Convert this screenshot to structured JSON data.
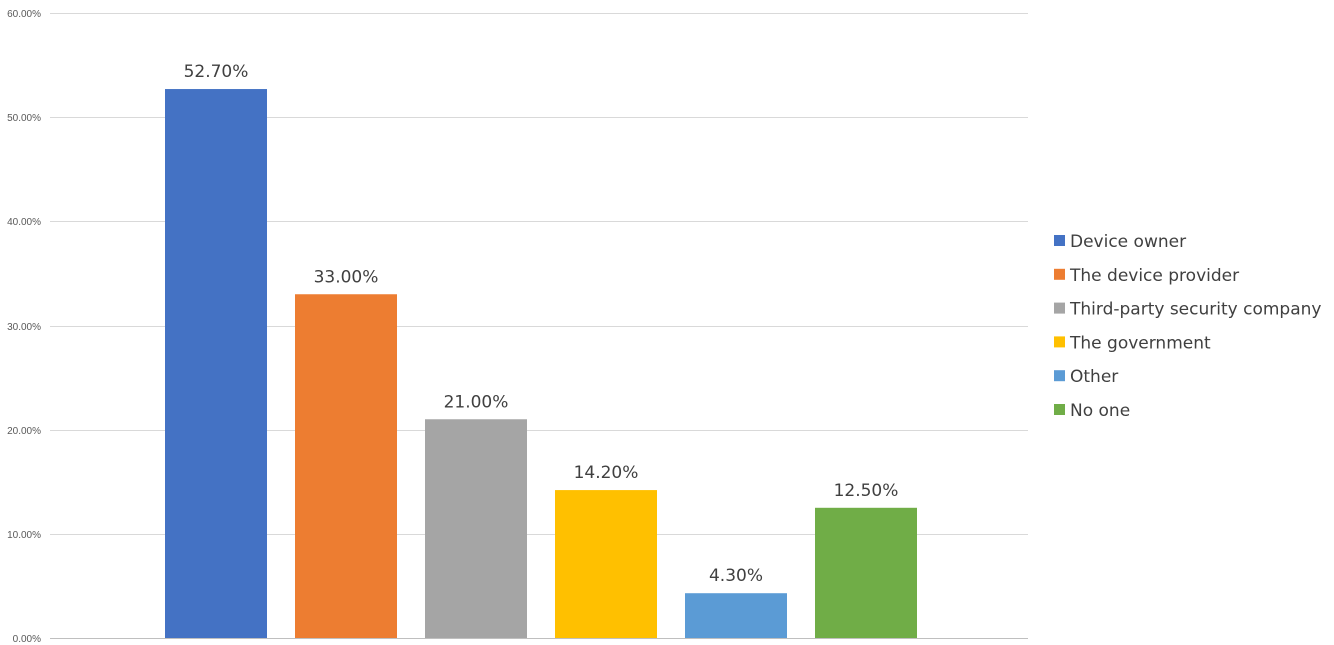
{
  "chart_data": {
    "type": "bar",
    "title": "",
    "xlabel": "",
    "ylabel": "",
    "ylim": [
      0,
      0.6
    ],
    "y_ticks": [
      0,
      0.1,
      0.2,
      0.3,
      0.4,
      0.5,
      0.6
    ],
    "y_tick_labels": [
      "0.00%",
      "10.00%",
      "20.00%",
      "30.00%",
      "40.00%",
      "50.00%",
      "60.00%"
    ],
    "grid": true,
    "legend_position": "right",
    "series": [
      {
        "name": "Device owner",
        "value": 0.527,
        "label": "52.70%",
        "color": "#4472c4"
      },
      {
        "name": "The device provider",
        "value": 0.33,
        "label": "33.00%",
        "color": "#ed7d31"
      },
      {
        "name": "Third-party security company",
        "value": 0.21,
        "label": "21.00%",
        "color": "#a5a5a5"
      },
      {
        "name": "The government",
        "value": 0.142,
        "label": "14.20%",
        "color": "#ffc000"
      },
      {
        "name": "Other",
        "value": 0.043,
        "label": "4.30%",
        "color": "#5b9bd5"
      },
      {
        "name": "No one",
        "value": 0.125,
        "label": "12.50%",
        "color": "#70ad47"
      }
    ]
  }
}
